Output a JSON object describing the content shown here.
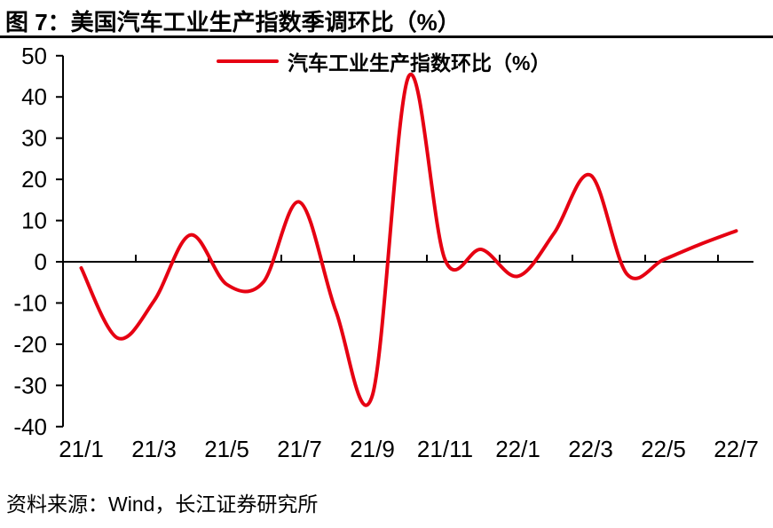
{
  "figure": {
    "title": "图 7：美国汽车工业生产指数季调环比（%）",
    "source": "资料来源：Wind，长江证券研究所"
  },
  "legend": {
    "label": "汽车工业生产指数环比（%）"
  },
  "colors": {
    "line": "#e60012",
    "axis": "#000000",
    "text": "#000000",
    "background": "#ffffff"
  },
  "chart_data": {
    "type": "line",
    "title": "美国汽车工业生产指数季调环比（%）",
    "smooth": true,
    "grid": false,
    "legend_position": "top",
    "legend_entries": [
      "汽车工业生产指数环比（%）"
    ],
    "categories": [
      "21/1",
      "21/2",
      "21/3",
      "21/4",
      "21/5",
      "21/6",
      "21/7",
      "21/8",
      "21/9",
      "21/10",
      "21/11",
      "21/12",
      "22/1",
      "22/2",
      "22/3",
      "22/4",
      "22/5",
      "22/6",
      "22/7"
    ],
    "x_tick_labels": [
      "21/1",
      "21/3",
      "21/5",
      "21/7",
      "21/9",
      "21/11",
      "22/1",
      "22/3",
      "22/5",
      "22/7"
    ],
    "series": [
      {
        "name": "汽车工业生产指数环比（%）",
        "color": "#e60012",
        "values": [
          -1.5,
          -18.5,
          -9.5,
          6.5,
          -5.5,
          -5.0,
          14.5,
          -12.0,
          -32.5,
          45.0,
          0.5,
          3.0,
          -3.5,
          7.0,
          21.0,
          -3.0,
          0.5,
          4.2,
          7.5
        ]
      }
    ],
    "xlabel": "",
    "ylabel": "",
    "ylim": [
      -40,
      50
    ],
    "ytick_step": 10,
    "yticks": [
      50,
      40,
      30,
      20,
      10,
      0,
      -10,
      -20,
      -30,
      -40
    ]
  }
}
